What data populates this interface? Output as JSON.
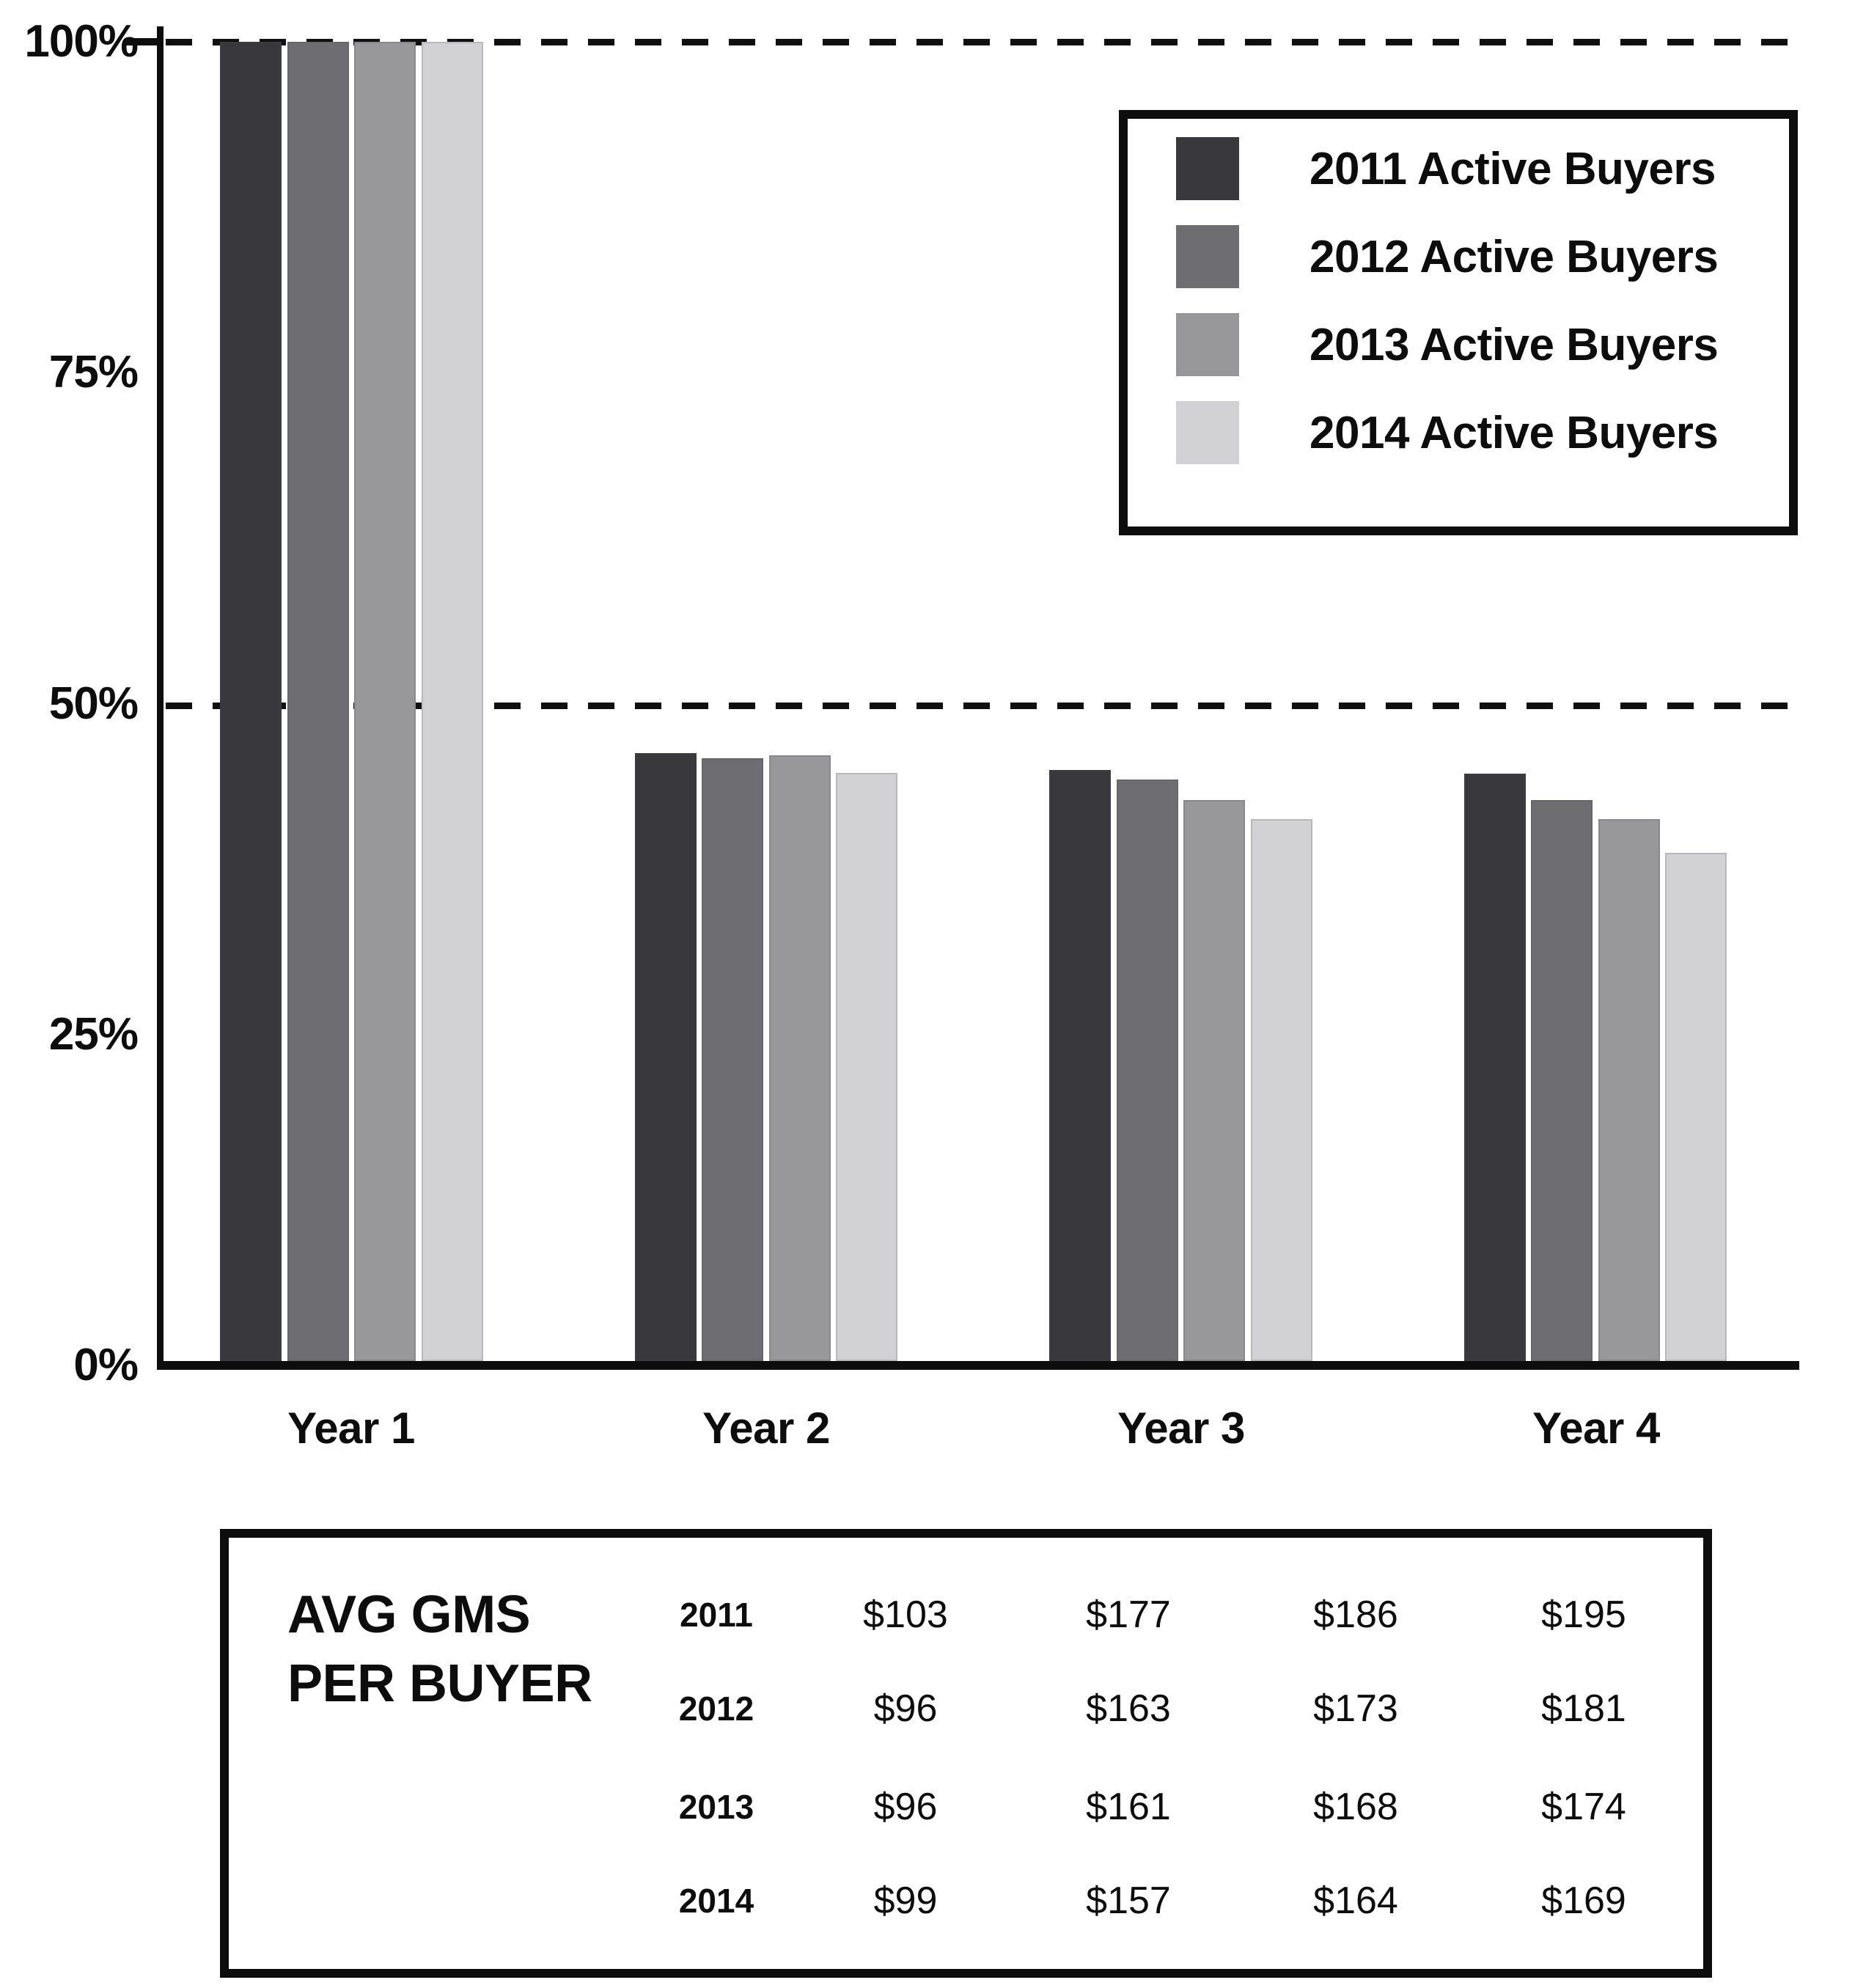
{
  "chart_data": {
    "type": "bar",
    "title": "",
    "categories": [
      "Year 1",
      "Year 2",
      "Year 3",
      "Year 4"
    ],
    "series": [
      {
        "name": "2011 Active Buyers",
        "color": "#39393d",
        "values": [
          100,
          46.1,
          44.8,
          44.5
        ]
      },
      {
        "name": "2012 Active Buyers",
        "color": "#6e6e72",
        "values": [
          100,
          45.7,
          44.1,
          42.5
        ]
      },
      {
        "name": "2013 Active Buyers",
        "color": "#98989b",
        "values": [
          100,
          45.9,
          42.5,
          41.1
        ]
      },
      {
        "name": "2014 Active Buyers",
        "color": "#d2d2d4",
        "values": [
          100,
          44.6,
          41.1,
          38.5
        ]
      }
    ],
    "ylabel": "",
    "xlabel": "",
    "ylim": [
      0,
      100
    ],
    "y_ticks": [
      "100%",
      "75%",
      "50%",
      "25%",
      "0%"
    ],
    "dashed_gridlines_at": [
      100,
      50
    ],
    "legend_position": "top-right",
    "axis_color": "#0d0d0d"
  },
  "table": {
    "title_line1": "AVG GMS",
    "title_line2": "PER BUYER",
    "columns": [
      "Year 1",
      "Year 2",
      "Year 3",
      "Year 4"
    ],
    "rows": [
      {
        "year": "2011",
        "values": [
          "$103",
          "$177",
          "$186",
          "$195"
        ]
      },
      {
        "year": "2012",
        "values": [
          "$96",
          "$163",
          "$173",
          "$181"
        ]
      },
      {
        "year": "2013",
        "values": [
          "$96",
          "$161",
          "$168",
          "$174"
        ]
      },
      {
        "year": "2014",
        "values": [
          "$99",
          "$157",
          "$164",
          "$169"
        ]
      }
    ]
  }
}
